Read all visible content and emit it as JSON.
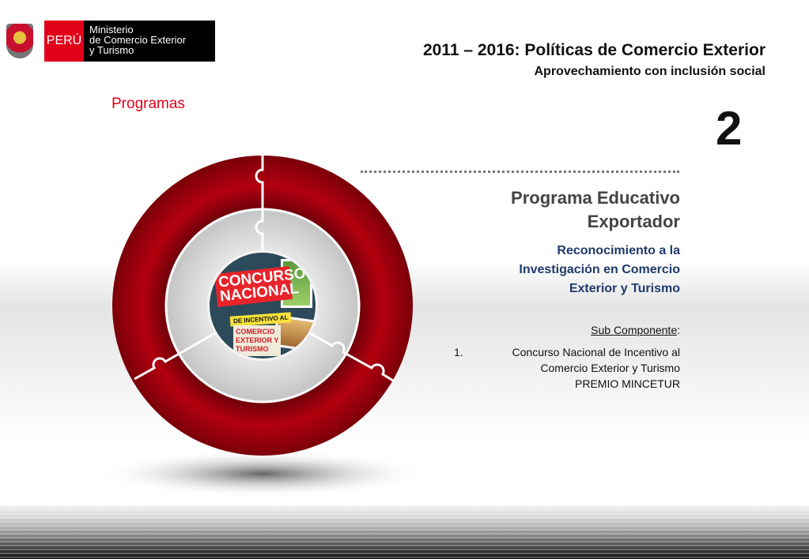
{
  "logo": {
    "country": "PERÚ",
    "ministry_lines": [
      "Ministerio",
      "de Comercio Exterior",
      "y Turismo"
    ]
  },
  "header": {
    "title": "2011 – 2016: Políticas de Comercio Exterior",
    "subtitle": "Aprovechamiento con inclusión social"
  },
  "section": "Programas",
  "number": "2",
  "program": {
    "title_lines": [
      "Programa Educativo",
      "Exportador"
    ],
    "subtitle_lines": [
      "Reconocimiento a la",
      "Investigación en Comercio",
      "Exterior y Turismo"
    ]
  },
  "sub_component": {
    "label": "Sub Componente",
    "suffix": ":",
    "items": [
      {
        "number": "1.",
        "lines": [
          "Concurso Nacional de Incentivo al",
          "Comercio Exterior y Turismo",
          "PREMIO MINCETUR"
        ]
      }
    ]
  },
  "poster": {
    "title": "CONCURSO NACIONAL",
    "band": "DE INCENTIVO AL",
    "topic": [
      "COMERCIO",
      "EXTERIOR Y",
      "TURISMO"
    ]
  },
  "colors": {
    "accent": "#e1001a",
    "ring": "#a8000f",
    "heading_blue": "#1f3a6b"
  }
}
